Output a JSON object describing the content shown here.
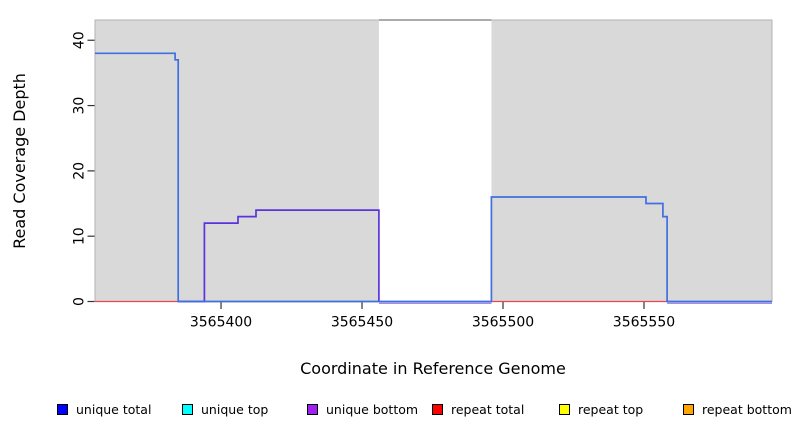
{
  "axes": {
    "x_title": "Coordinate in Reference Genome",
    "y_title": "Read Coverage Depth"
  },
  "legend": {
    "items": [
      {
        "label": "unique total",
        "color": "#0000FF"
      },
      {
        "label": "unique top",
        "color": "#00FFFF"
      },
      {
        "label": "unique bottom",
        "color": "#A020F0"
      },
      {
        "label": "repeat total",
        "color": "#FF0000"
      },
      {
        "label": "repeat top",
        "color": "#FFFF00"
      },
      {
        "label": "repeat bottom",
        "color": "#FFA500"
      }
    ]
  },
  "chart_data": {
    "type": "line",
    "subtype": "step-coverage",
    "title": "",
    "xlabel": "Coordinate in Reference Genome",
    "ylabel": "Read Coverage Depth",
    "xlim": [
      3565355.3,
      3565595.4
    ],
    "ylim": [
      0,
      43.1
    ],
    "xticks": [
      3565400,
      3565450,
      3565500,
      3565550
    ],
    "yticks": [
      0,
      10,
      20,
      30,
      40
    ],
    "grid": false,
    "legend_position": "bottom",
    "background": {
      "plot_fill": "#D9D9D9",
      "plot_border": "#B3B3B3",
      "gap_region": {
        "x0": 3565456.0,
        "x1": 3565495.9,
        "fill": "#FFFFFF",
        "top_line_color": "#8F8F8F"
      }
    },
    "series": [
      {
        "name": "top overlap zero line (green)",
        "color": "#6EC36E",
        "width": 1.3,
        "points": [
          [
            3565394.1,
            0
          ],
          [
            3565456.0,
            0
          ]
        ]
      },
      {
        "name": "repeat total (left)",
        "color": "#E8474F",
        "width": 1.3,
        "points": [
          [
            3565355.3,
            0
          ],
          [
            3565384.8,
            0
          ]
        ]
      },
      {
        "name": "repeat total (right)",
        "color": "#E8474F",
        "width": 1.3,
        "points": [
          [
            3565495.9,
            0
          ],
          [
            3565558.2,
            0
          ]
        ]
      },
      {
        "name": "unique bottom zero (under gap)",
        "color": "#A18FEA",
        "width": 1.4,
        "dy": 1.8,
        "points": [
          [
            3565456.0,
            0
          ],
          [
            3565495.9,
            0
          ]
        ]
      },
      {
        "name": "unique bottom zero (right end)",
        "color": "#A18FEA",
        "width": 1.4,
        "dy": 1.8,
        "points": [
          [
            3565558.2,
            0
          ],
          [
            3565595.4,
            0
          ]
        ]
      },
      {
        "name": "unique bottom",
        "color": "#5B33DD",
        "width": 1.7,
        "points": [
          [
            3565384.8,
            0
          ],
          [
            3565394.1,
            0
          ],
          [
            3565394.1,
            12
          ],
          [
            3565406.0,
            12
          ],
          [
            3565406.0,
            13
          ],
          [
            3565412.4,
            13
          ],
          [
            3565412.4,
            14
          ],
          [
            3565456.0,
            14
          ],
          [
            3565456.0,
            0
          ]
        ]
      },
      {
        "name": "unique total",
        "color": "#3F6FE0",
        "width": 1.7,
        "points": [
          [
            3565355.3,
            38
          ],
          [
            3565383.7,
            38
          ],
          [
            3565383.7,
            37
          ],
          [
            3565384.8,
            37
          ],
          [
            3565384.8,
            0
          ],
          [
            3565495.9,
            0
          ],
          [
            3565495.9,
            16
          ],
          [
            3565550.7,
            16
          ],
          [
            3565550.7,
            15
          ],
          [
            3565556.7,
            15
          ],
          [
            3565556.7,
            13
          ],
          [
            3565558.2,
            13
          ],
          [
            3565558.2,
            0
          ],
          [
            3565595.4,
            0
          ]
        ]
      }
    ]
  }
}
